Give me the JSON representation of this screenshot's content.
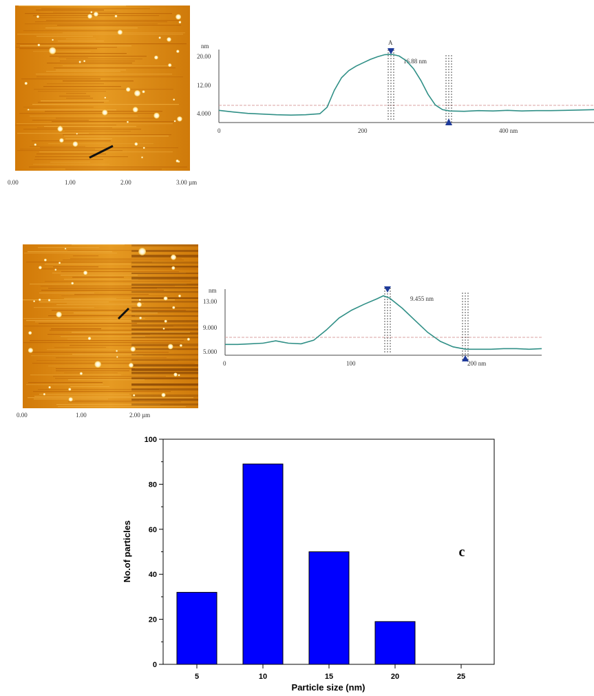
{
  "afm_images": [
    {
      "x_ticks": [
        "0.00",
        "1.00",
        "2.00",
        "3.00 µm"
      ]
    },
    {
      "x_ticks": [
        "0.00",
        "1.00",
        "2.00 µm"
      ]
    }
  ],
  "chart_data": [
    {
      "type": "line",
      "unit_label": "nm",
      "yticks": [
        "20.00",
        "12.00",
        "4.000"
      ],
      "xticks": [
        "0",
        "200",
        "400 nm"
      ],
      "xlim": [
        0,
        520
      ],
      "ylim": [
        0,
        21.5
      ],
      "x": [
        0,
        20,
        40,
        60,
        80,
        100,
        120,
        140,
        150,
        160,
        170,
        180,
        190,
        200,
        210,
        220,
        230,
        240,
        250,
        260,
        270,
        280,
        290,
        300,
        310,
        320,
        340,
        360,
        380,
        400,
        420,
        440,
        460,
        480,
        500,
        520
      ],
      "y": [
        3.6,
        3.1,
        2.7,
        2.5,
        2.3,
        2.2,
        2.3,
        2.6,
        4.5,
        9.5,
        13.2,
        15.3,
        16.6,
        17.6,
        18.6,
        19.4,
        20.0,
        20.1,
        19.6,
        18.2,
        15.8,
        12.4,
        8.3,
        5.2,
        3.8,
        3.4,
        3.3,
        3.5,
        3.4,
        3.6,
        3.4,
        3.5,
        3.5,
        3.6,
        3.7,
        3.8
      ],
      "ref_y": 8.0,
      "marker_a_x": 233,
      "marker_b_x": 312,
      "marker_a_label": "A",
      "annotation": "16.88 nm"
    },
    {
      "type": "line",
      "unit_label": "nm",
      "yticks": [
        "13.00",
        "9.000",
        "5.000"
      ],
      "xticks": [
        "0",
        "100",
        "200 nm"
      ],
      "xlim": [
        0,
        250
      ],
      "ylim": [
        4,
        15
      ],
      "x": [
        0,
        10,
        20,
        30,
        40,
        45,
        50,
        60,
        70,
        80,
        90,
        100,
        110,
        120,
        125,
        130,
        140,
        150,
        160,
        170,
        180,
        190,
        200,
        210,
        220,
        230,
        240,
        250
      ],
      "y": [
        5.8,
        5.8,
        5.9,
        6.0,
        6.4,
        6.2,
        6.0,
        5.9,
        6.5,
        8.2,
        10.2,
        11.5,
        12.5,
        13.4,
        13.9,
        13.5,
        11.8,
        9.8,
        7.8,
        6.3,
        5.4,
        5.0,
        5.0,
        5.0,
        5.1,
        5.1,
        5.0,
        5.1
      ],
      "ref_y": 7.0,
      "marker_a_x": 127,
      "marker_b_x": 188,
      "annotation": "9.455 nm"
    },
    {
      "type": "bar",
      "categories": [
        "5",
        "10",
        "15",
        "20",
        "25"
      ],
      "values": [
        32,
        89,
        50,
        19,
        0
      ],
      "xlabel": "Particle size (nm)",
      "ylabel": "No.of particles",
      "ylim": [
        0,
        100
      ],
      "yticks": [
        "0",
        "20",
        "40",
        "60",
        "80",
        "100"
      ],
      "bar_color": "#0000ff",
      "panel_letter": "c"
    }
  ]
}
